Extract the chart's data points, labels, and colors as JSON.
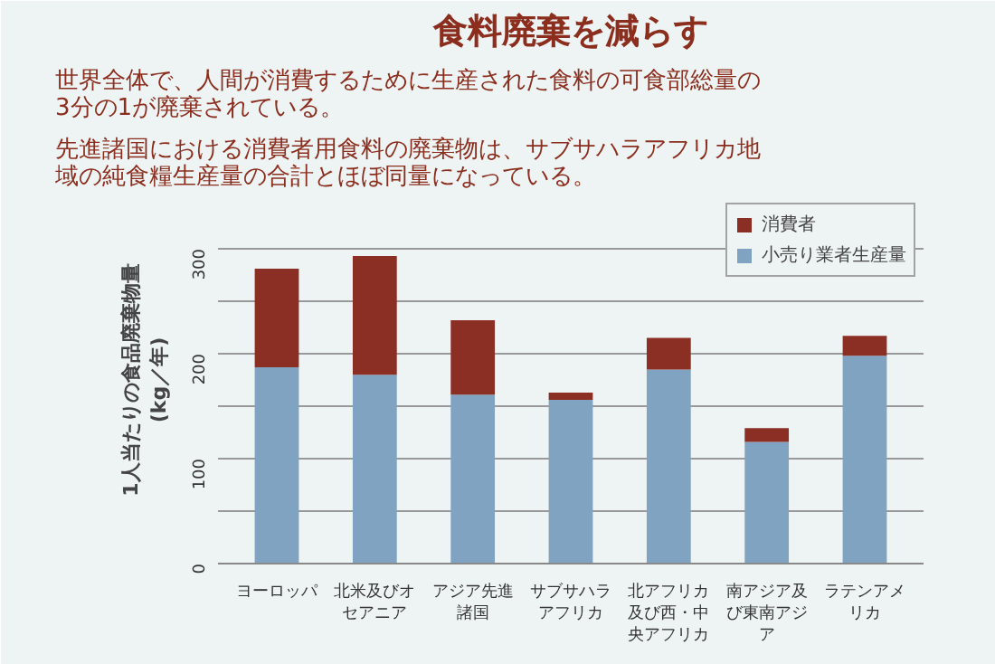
{
  "chart_data": {
    "type": "bar",
    "title": "食料廃棄を減らす",
    "annotations": [
      "世界全体で、人間が消費するために生産された食料の可食部総量の3分の1が廃棄されている。",
      "先進諸国における消費者用食料の廃棄物は、サブサハラアフリカ地域の純食糧生産量の合計とほぼ同量になっている。"
    ],
    "ylabel": "1人当たりの食品廃棄物量\n(kg／年)",
    "categories": [
      "ヨーロッパ",
      "北米及びオセアニア",
      "アジア先進諸国",
      "サブサハラアフリカ",
      "北アフリカ及び西・中央アフリカ",
      "南アジア及び東南アジア",
      "ラテンアメリカ"
    ],
    "stacked": true,
    "series": [
      {
        "name": "小売り業者生産量",
        "color": "#7fa3c0",
        "values": [
          187,
          180,
          161,
          156,
          185,
          116,
          198
        ]
      },
      {
        "name": "消費者",
        "color": "#8b2e24",
        "values": [
          94,
          113,
          71,
          7,
          30,
          13,
          19
        ]
      }
    ],
    "ylim": [
      0,
      350
    ],
    "yticks": [
      0,
      {
        "value": 50,
        "label": null
      },
      100,
      {
        "value": 150,
        "label": null
      },
      200,
      {
        "value": 250,
        "label": null
      },
      300,
      {
        "value": 350,
        "label": null
      }
    ],
    "grid": "y",
    "legend": "top right"
  }
}
